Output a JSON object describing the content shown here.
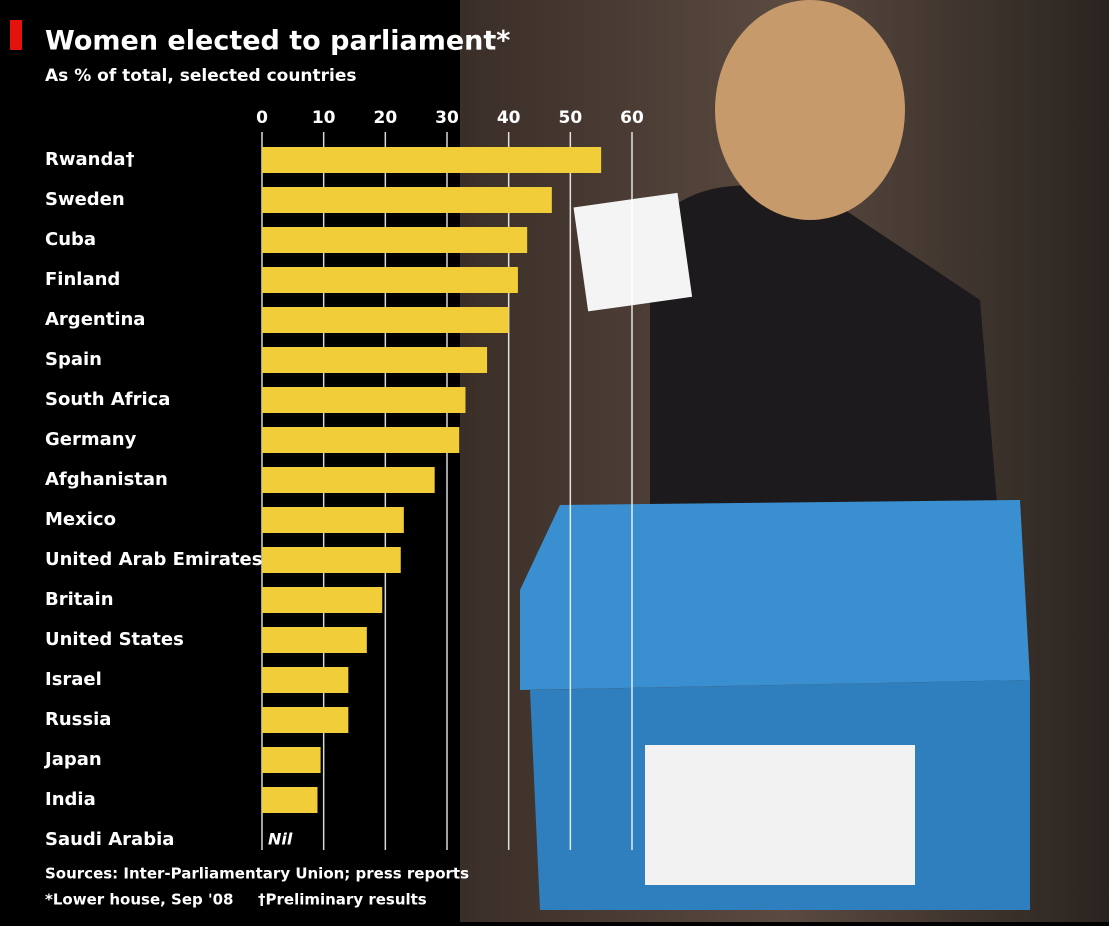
{
  "chart_data": {
    "type": "bar",
    "orientation": "horizontal",
    "title": "Women elected to parliament*",
    "subtitle": "As % of total, selected countries",
    "categories": [
      "Rwanda†",
      "Sweden",
      "Cuba",
      "Finland",
      "Argentina",
      "Spain",
      "South Africa",
      "Germany",
      "Afghanistan",
      "Mexico",
      "United Arab Emirates",
      "Britain",
      "United States",
      "Israel",
      "Russia",
      "Japan",
      "India",
      "Saudi Arabia"
    ],
    "values": [
      55,
      47,
      43,
      41.5,
      40,
      36.5,
      33,
      32,
      28,
      23,
      22.5,
      19.5,
      17,
      14,
      14,
      9.5,
      9,
      null
    ],
    "value_labels": [
      null,
      null,
      null,
      null,
      null,
      null,
      null,
      null,
      null,
      null,
      null,
      null,
      null,
      null,
      null,
      null,
      null,
      "Nil"
    ],
    "color": "#f2cd3a",
    "xlim": [
      0,
      60
    ],
    "xticks": [
      0,
      10,
      20,
      30,
      40,
      50,
      60
    ],
    "grid": true,
    "source": "Sources: Inter-Parliamentary Union; press reports",
    "notes": [
      "*Lower house, Sep '08",
      "†Preliminary results"
    ]
  }
}
